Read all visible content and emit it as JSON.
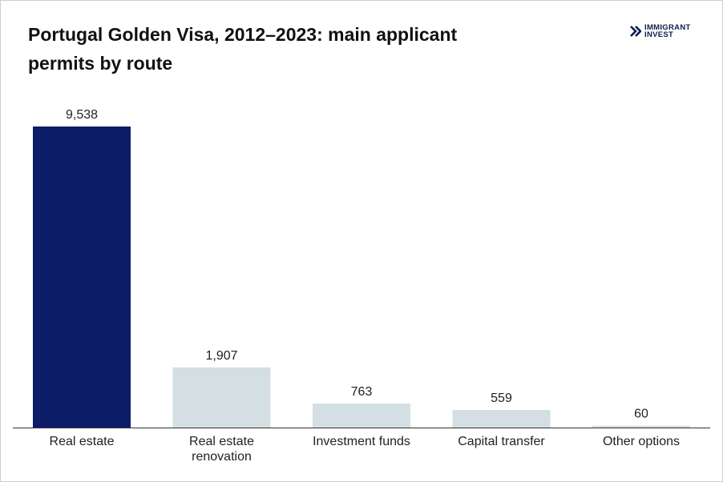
{
  "header": {
    "title_line1": "Portugal Golden Visa, 2012–2023: main applicant",
    "title_line2": "permits by route"
  },
  "logo": {
    "line1": "IMMIGRANT",
    "line2": "INVEST",
    "icon": "chevrons-icon"
  },
  "colors": {
    "highlight_bar": "#0c1c66",
    "muted_bar": "#d4dfe3",
    "axis": "#333333"
  },
  "chart_data": {
    "type": "bar",
    "title": "Portugal Golden Visa, 2012–2023: main applicant permits by route",
    "categories": [
      "Real estate",
      "Real estate renovation",
      "Investment funds",
      "Capital transfer",
      "Other options"
    ],
    "category_lines": [
      [
        "Real estate"
      ],
      [
        "Real estate",
        "renovation"
      ],
      [
        "Investment funds"
      ],
      [
        "Capital transfer"
      ],
      [
        "Other options"
      ]
    ],
    "values": [
      9538,
      1907,
      763,
      559,
      60
    ],
    "value_labels": [
      "9,538",
      "1,907",
      "763",
      "559",
      "60"
    ],
    "highlight_index": 0,
    "ylim": [
      0,
      9538
    ],
    "grid": false,
    "xlabel": "",
    "ylabel": ""
  }
}
